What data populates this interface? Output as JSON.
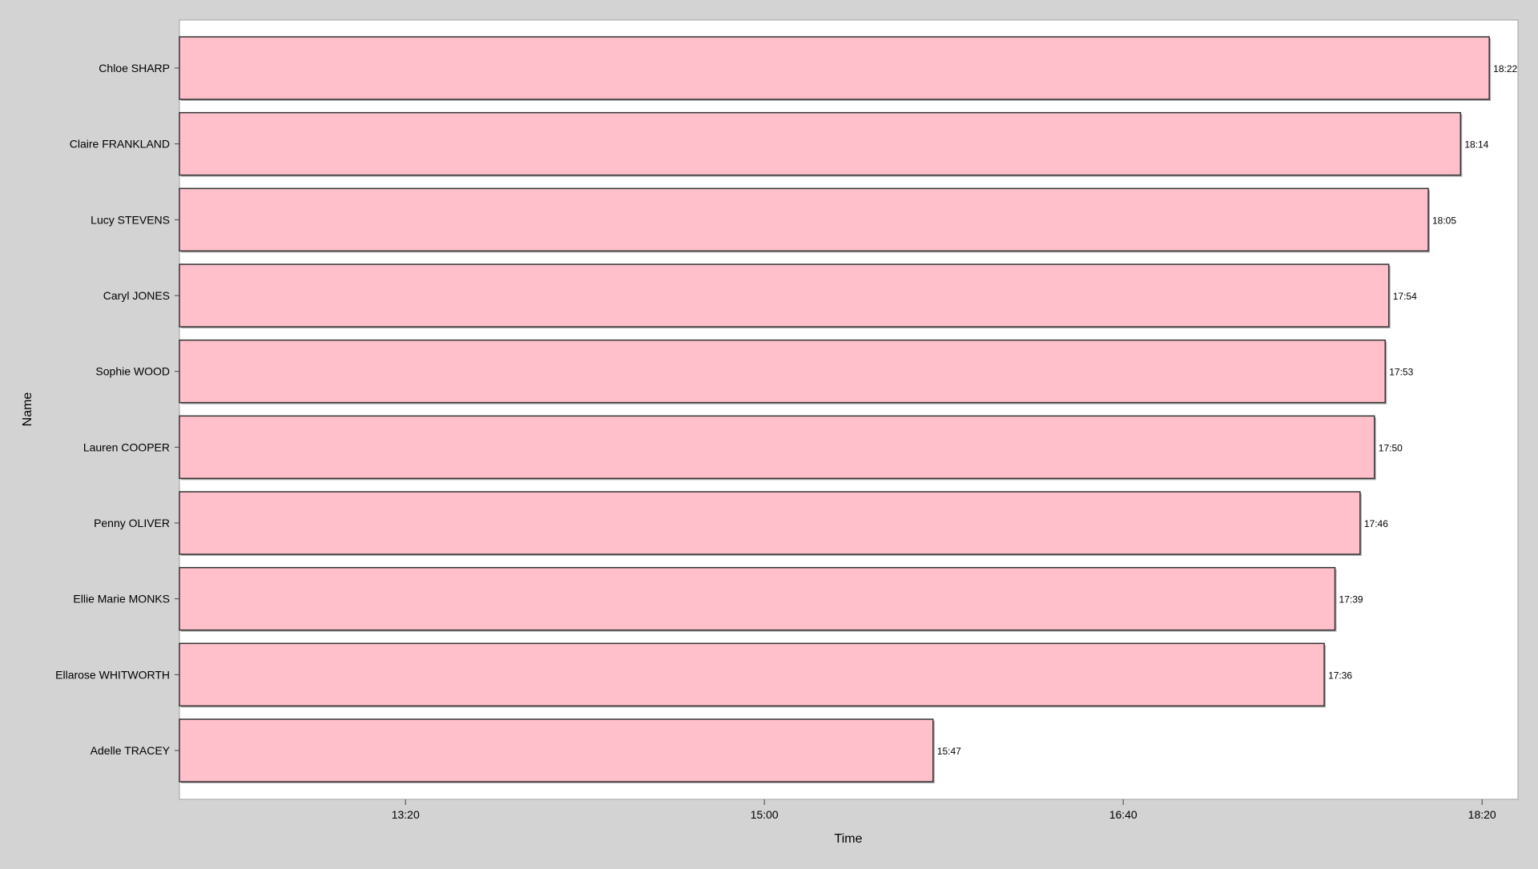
{
  "chart_data": {
    "type": "bar",
    "orientation": "horizontal",
    "xlabel": "Time",
    "ylabel": "Name",
    "x_unit": "mm:ss",
    "xlim": [
      "12:17",
      "18:30"
    ],
    "x_ticks": [
      "13:20",
      "15:00",
      "16:40",
      "18:20"
    ],
    "grid": false,
    "categories": [
      "Chloe SHARP",
      "Claire FRANKLAND",
      "Lucy STEVENS",
      "Caryl JONES",
      "Sophie WOOD",
      "Lauren COOPER",
      "Penny OLIVER",
      "Ellie Marie MONKS",
      "Ellarose WHITWORTH",
      "Adelle TRACEY"
    ],
    "values": [
      "18:22",
      "18:14",
      "18:05",
      "17:54",
      "17:53",
      "17:50",
      "17:46",
      "17:39",
      "17:36",
      "15:47"
    ],
    "colors": {
      "background": "#d3d3d3",
      "plot_background": "#ffffff",
      "bar_fill": "#ffc0cb",
      "bar_stroke": "#333333"
    }
  }
}
